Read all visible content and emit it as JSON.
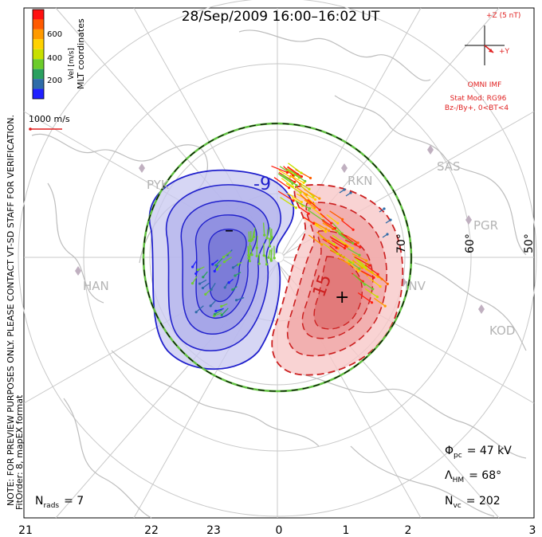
{
  "title": "28/Sep/2009  16:00–16:02  UT",
  "colorbar": {
    "tick_labels": [
      "600",
      "400",
      "200"
    ],
    "label": "Vel [m/s]",
    "colors": [
      "#ff1010",
      "#ff5a00",
      "#ff9a00",
      "#ffd200",
      "#c8e000",
      "#6ccc2a",
      "#2aa060",
      "#2e6ca8",
      "#2020ff"
    ]
  },
  "coords_label": "MLT coordinates",
  "scale_vector_label": "1000 m/s",
  "imf": {
    "title": "+Z (5 nT)",
    "y_label": "+Y",
    "source": "OMNI IMF",
    "model_line1": "Stat Mod: RG96",
    "model_line2": "Bz-/By+, 0<BT<4"
  },
  "contour_labels": [
    "-9",
    "15"
  ],
  "extrema_marks": [
    "–",
    "+"
  ],
  "latitude_labels": [
    "70°",
    "60°",
    "50°"
  ],
  "radar_labels": [
    "PYK",
    "RKN",
    "SAS",
    "PGR",
    "HAN",
    "INV",
    "KOD"
  ],
  "side_note_line1": "NOTE: FOR PREVIEW PURPOSES ONLY. PLEASE CONTACT VT-SD STAFF FOR VERIFICATION.",
  "side_note_line2": "FitOrder: 8, mapEX format",
  "stats": {
    "phi_label": "Φ",
    "phi_sub": "pc",
    "phi_value": "= 47 kV",
    "lam_label": "Λ",
    "lam_sub": "HM",
    "lam_value": "= 68°",
    "nvc_label": "N",
    "nvc_sub": "vc",
    "nvc_value": "= 202",
    "nrads_label": "N",
    "nrads_sub": "rads",
    "nrads_value": "= 7"
  },
  "mlt_axis_labels": [
    "21",
    "22",
    "23",
    "0",
    "1",
    "2",
    "3"
  ]
}
